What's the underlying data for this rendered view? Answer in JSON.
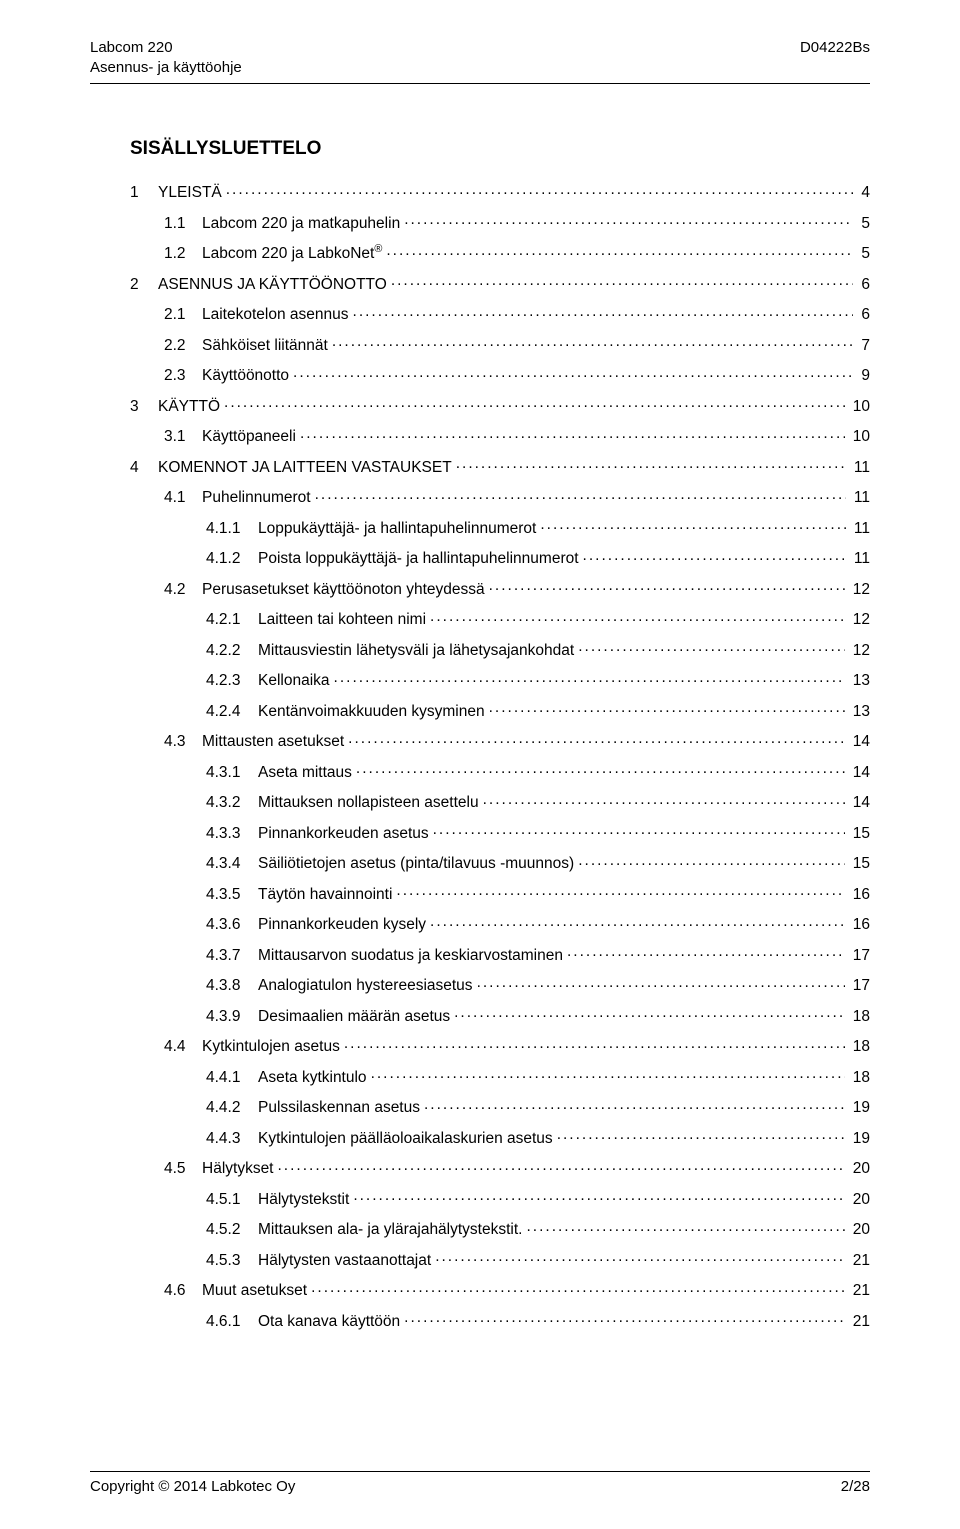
{
  "header": {
    "left_line1": "Labcom 220",
    "left_line2": "Asennus- ja käyttöohje",
    "right": "D04222Bs"
  },
  "toc_title": "SISÄLLYSLUETTELO",
  "toc": [
    {
      "level": 1,
      "num": "1",
      "label": "YLEISTÄ",
      "page": "4",
      "sup": null
    },
    {
      "level": 2,
      "num": "1.1",
      "label": "Labcom 220 ja matkapuhelin",
      "page": "5",
      "sup": null
    },
    {
      "level": 2,
      "num": "1.2",
      "label": "Labcom 220 ja LabkoNet",
      "page": "5",
      "sup": "®"
    },
    {
      "level": 1,
      "num": "2",
      "label": "ASENNUS JA KÄYTTÖÖNOTTO",
      "page": "6",
      "sup": null
    },
    {
      "level": 2,
      "num": "2.1",
      "label": "Laitekotelon asennus",
      "page": "6",
      "sup": null
    },
    {
      "level": 2,
      "num": "2.2",
      "label": "Sähköiset liitännät",
      "page": "7",
      "sup": null
    },
    {
      "level": 2,
      "num": "2.3",
      "label": "Käyttöönotto",
      "page": "9",
      "sup": null
    },
    {
      "level": 1,
      "num": "3",
      "label": "KÄYTTÖ",
      "page": "10",
      "sup": null
    },
    {
      "level": 2,
      "num": "3.1",
      "label": "Käyttöpaneeli",
      "page": "10",
      "sup": null
    },
    {
      "level": 1,
      "num": "4",
      "label": "KOMENNOT JA LAITTEEN VASTAUKSET",
      "page": "11",
      "sup": null
    },
    {
      "level": 2,
      "num": "4.1",
      "label": "Puhelinnumerot",
      "page": "11",
      "sup": null
    },
    {
      "level": 3,
      "num": "4.1.1",
      "label": "Loppukäyttäjä- ja hallintapuhelinnumerot",
      "page": "11",
      "sup": null
    },
    {
      "level": 3,
      "num": "4.1.2",
      "label": "Poista loppukäyttäjä- ja hallintapuhelinnumerot",
      "page": "11",
      "sup": null
    },
    {
      "level": 2,
      "num": "4.2",
      "label": "Perusasetukset käyttöönoton yhteydessä",
      "page": "12",
      "sup": null
    },
    {
      "level": 3,
      "num": "4.2.1",
      "label": "Laitteen tai kohteen nimi",
      "page": "12",
      "sup": null
    },
    {
      "level": 3,
      "num": "4.2.2",
      "label": "Mittausviestin lähetysväli ja lähetysajankohdat",
      "page": "12",
      "sup": null
    },
    {
      "level": 3,
      "num": "4.2.3",
      "label": "Kellonaika",
      "page": "13",
      "sup": null
    },
    {
      "level": 3,
      "num": "4.2.4",
      "label": "Kentänvoimakkuuden kysyminen",
      "page": "13",
      "sup": null
    },
    {
      "level": 2,
      "num": "4.3",
      "label": "Mittausten asetukset",
      "page": "14",
      "sup": null
    },
    {
      "level": 3,
      "num": "4.3.1",
      "label": "Aseta mittaus",
      "page": "14",
      "sup": null
    },
    {
      "level": 3,
      "num": "4.3.2",
      "label": "Mittauksen nollapisteen asettelu",
      "page": "14",
      "sup": null
    },
    {
      "level": 3,
      "num": "4.3.3",
      "label": "Pinnankorkeuden asetus",
      "page": "15",
      "sup": null
    },
    {
      "level": 3,
      "num": "4.3.4",
      "label": "Säiliötietojen asetus (pinta/tilavuus -muunnos)",
      "page": "15",
      "sup": null
    },
    {
      "level": 3,
      "num": "4.3.5",
      "label": "Täytön havainnointi",
      "page": "16",
      "sup": null
    },
    {
      "level": 3,
      "num": "4.3.6",
      "label": "Pinnankorkeuden kysely",
      "page": "16",
      "sup": null
    },
    {
      "level": 3,
      "num": "4.3.7",
      "label": "Mittausarvon suodatus ja keskiarvostaminen",
      "page": "17",
      "sup": null
    },
    {
      "level": 3,
      "num": "4.3.8",
      "label": "Analogiatulon hystereesiasetus",
      "page": "17",
      "sup": null
    },
    {
      "level": 3,
      "num": "4.3.9",
      "label": "Desimaalien määrän asetus",
      "page": "18",
      "sup": null
    },
    {
      "level": 2,
      "num": "4.4",
      "label": "Kytkintulojen asetus",
      "page": "18",
      "sup": null
    },
    {
      "level": 3,
      "num": "4.4.1",
      "label": "Aseta kytkintulo",
      "page": "18",
      "sup": null
    },
    {
      "level": 3,
      "num": "4.4.2",
      "label": "Pulssilaskennan asetus",
      "page": "19",
      "sup": null
    },
    {
      "level": 3,
      "num": "4.4.3",
      "label": "Kytkintulojen päälläoloaikalaskurien asetus",
      "page": "19",
      "sup": null
    },
    {
      "level": 2,
      "num": "4.5",
      "label": "Hälytykset",
      "page": "20",
      "sup": null
    },
    {
      "level": 3,
      "num": "4.5.1",
      "label": "Hälytystekstit",
      "page": "20",
      "sup": null
    },
    {
      "level": 3,
      "num": "4.5.2",
      "label": "Mittauksen ala- ja ylärajahälytystekstit.",
      "page": "20",
      "sup": null
    },
    {
      "level": 3,
      "num": "4.5.3",
      "label": "Hälytysten vastaanottajat",
      "page": "21",
      "sup": null
    },
    {
      "level": 2,
      "num": "4.6",
      "label": "Muut asetukset",
      "page": "21",
      "sup": null
    },
    {
      "level": 3,
      "num": "4.6.1",
      "label": "Ota kanava käyttöön",
      "page": "21",
      "sup": null
    }
  ],
  "footer": {
    "left": "Copyright © 2014 Labkotec Oy",
    "right": "2/28"
  }
}
